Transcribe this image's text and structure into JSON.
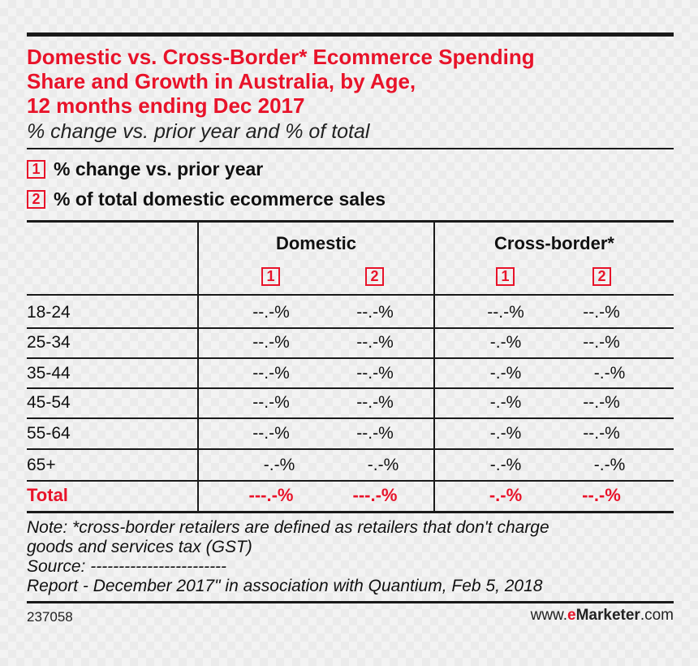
{
  "title_lines": [
    "Domestic vs. Cross-Border* Ecommerce Spending",
    "Share and Growth in Australia, by Age,",
    "12 months ending Dec 2017"
  ],
  "subtitle": "% change vs. prior year and % of total",
  "legend": [
    {
      "badge": "1",
      "label": "% change vs. prior year"
    },
    {
      "badge": "2",
      "label": "% of total domestic ecommerce sales"
    }
  ],
  "column_groups": [
    "Domestic",
    "Cross-border*"
  ],
  "column_badges": [
    "1",
    "2",
    "1",
    "2"
  ],
  "chart_data": {
    "type": "table",
    "columns": [
      "Domestic 1",
      "Domestic 2",
      "Cross-border* 1",
      "Cross-border* 2"
    ],
    "rows": [
      {
        "label": "18-24",
        "values": [
          "--.-%",
          "--.-%",
          "--.-%",
          "--.-%"
        ]
      },
      {
        "label": "25-34",
        "values": [
          "--.-%",
          "--.-%",
          "-.-%",
          "--.-%"
        ]
      },
      {
        "label": "35-44",
        "values": [
          "--.-%",
          "--.-%",
          "-.-%",
          "-.-%"
        ]
      },
      {
        "label": "45-54",
        "values": [
          "--.-%",
          "--.-%",
          "-.-%",
          "--.-%"
        ]
      },
      {
        "label": "55-64",
        "values": [
          "--.-%",
          "--.-%",
          "-.-%",
          "--.-%"
        ]
      },
      {
        "label": "65+",
        "values": [
          "-.-%",
          "-.-%",
          "-.-%",
          "-.-%"
        ]
      }
    ],
    "total": {
      "label": "Total",
      "values": [
        "---.-%",
        "---.-%",
        "-.-%",
        "--.-%"
      ]
    }
  },
  "notes": [
    "Note: *cross-border retailers are defined as retailers that don't charge",
    "goods and services tax (GST)",
    "Source: ------------------------",
    "Report - December 2017\" in association with Quantium, Feb 5, 2018"
  ],
  "footer": {
    "id": "237058",
    "site_prefix": "www.",
    "site_brand": "e",
    "site_name": "Marketer",
    "site_suffix": ".com"
  },
  "colors": {
    "accent": "#e8132a",
    "rule": "#1a1a1a"
  }
}
